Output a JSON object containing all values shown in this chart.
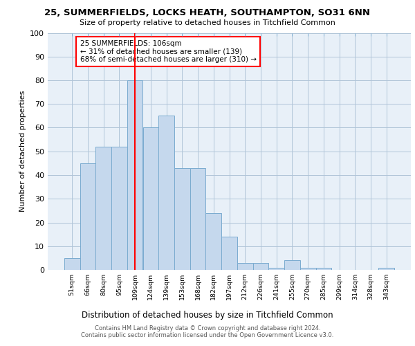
{
  "title1": "25, SUMMERFIELDS, LOCKS HEATH, SOUTHAMPTON, SO31 6NN",
  "title2": "Size of property relative to detached houses in Titchfield Common",
  "xlabel": "Distribution of detached houses by size in Titchfield Common",
  "ylabel": "Number of detached properties",
  "bin_labels": [
    "51sqm",
    "66sqm",
    "80sqm",
    "95sqm",
    "109sqm",
    "124sqm",
    "139sqm",
    "153sqm",
    "168sqm",
    "182sqm",
    "197sqm",
    "212sqm",
    "226sqm",
    "241sqm",
    "255sqm",
    "270sqm",
    "285sqm",
    "299sqm",
    "314sqm",
    "328sqm",
    "343sqm"
  ],
  "bar_values": [
    5,
    45,
    52,
    52,
    80,
    60,
    65,
    43,
    43,
    24,
    14,
    3,
    3,
    1,
    4,
    1,
    1,
    0,
    0,
    0,
    1
  ],
  "bar_color": "#c5d8ed",
  "bar_edge_color": "#7aabcf",
  "vline_x": 4,
  "vline_color": "red",
  "annotation_text": "25 SUMMERFIELDS: 106sqm\n← 31% of detached houses are smaller (139)\n68% of semi-detached houses are larger (310) →",
  "annotation_box_color": "white",
  "annotation_box_edge_color": "red",
  "ylim": [
    0,
    100
  ],
  "yticks": [
    0,
    10,
    20,
    30,
    40,
    50,
    60,
    70,
    80,
    90,
    100
  ],
  "grid_color": "#b0c4d8",
  "bg_color": "#e8f0f8",
  "footer1": "Contains HM Land Registry data © Crown copyright and database right 2024.",
  "footer2": "Contains public sector information licensed under the Open Government Licence v3.0."
}
